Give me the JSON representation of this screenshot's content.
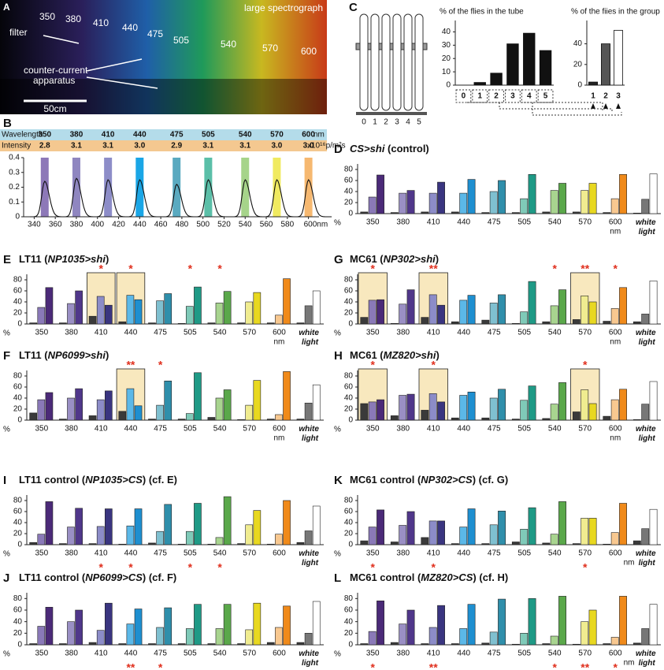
{
  "photo": {
    "label": "A",
    "title": "large spectrograph",
    "filter_label": "filter",
    "wavelengths": [
      "350",
      "380",
      "410",
      "440",
      "475",
      "505",
      "540",
      "570",
      "600"
    ],
    "apparatus_label": [
      "counter-current",
      "apparatus"
    ],
    "scale_label": "50cm"
  },
  "tubes": {
    "labels": [
      "0",
      "1",
      "2",
      "3",
      "4",
      "5"
    ]
  },
  "palette": [
    [
      "#3a3a3a",
      "#8a79b8",
      "#4b2a78"
    ],
    [
      "#3a3a3a",
      "#9a8fc4",
      "#50378a"
    ],
    [
      "#3a3a3a",
      "#8c8cc8",
      "#3a3580"
    ],
    [
      "#3a3a3a",
      "#5bb8e8",
      "#1e8fd0"
    ],
    [
      "#3a3a3a",
      "#7fc0d0",
      "#2f8fab"
    ],
    [
      "#3a3a3a",
      "#7fcab8",
      "#1f9a86"
    ],
    [
      "#3a3a3a",
      "#a8d48f",
      "#5aa84a"
    ],
    [
      "#3a3a3a",
      "#f0ec90",
      "#e8d820"
    ],
    [
      "#3a3a3a",
      "#f8c890",
      "#f08a1a"
    ],
    [
      "#3a3a3a",
      "#777777",
      "#ffffff"
    ]
  ],
  "chart_data": [
    {
      "type": "grouped_bar",
      "label": "D",
      "title": [
        {
          "text": "CS>shi",
          "italic": true
        },
        {
          "text": " (control)",
          "italic": false
        }
      ],
      "categories": [
        "350",
        "380",
        "410",
        "440",
        "475",
        "505",
        "540",
        "570",
        "600",
        "white light"
      ],
      "x_unit": "nm",
      "y_label": "%",
      "values": [
        [
          3,
          30,
          70
        ],
        [
          2,
          37,
          42
        ],
        [
          3,
          37,
          57
        ],
        [
          3,
          37,
          62
        ],
        [
          2,
          40,
          60
        ],
        [
          2,
          27,
          71
        ],
        [
          3,
          42,
          55
        ],
        [
          3,
          42,
          55
        ],
        [
          2,
          27,
          71
        ],
        [
          1,
          26,
          72
        ]
      ],
      "stars": [
        null,
        null,
        null,
        null,
        null,
        null,
        null,
        null,
        null,
        null
      ],
      "star_position": "top",
      "highlighted": [
        false,
        false,
        false,
        false,
        false,
        false,
        false,
        false,
        false,
        false
      ],
      "ylim": [
        0,
        90
      ],
      "yticks": [
        0,
        20,
        40,
        60,
        80
      ]
    },
    {
      "type": "grouped_bar",
      "label": "E",
      "title": [
        {
          "text": "LT11 (",
          "italic": false
        },
        {
          "text": "NP1035>shi",
          "italic": true
        },
        {
          "text": ")",
          "italic": false
        }
      ],
      "categories": [
        "350",
        "380",
        "410",
        "440",
        "475",
        "505",
        "540",
        "570",
        "600",
        "white light"
      ],
      "x_unit": "nm",
      "y_label": "%",
      "values": [
        [
          2,
          30,
          66
        ],
        [
          2,
          37,
          60
        ],
        [
          14,
          50,
          34
        ],
        [
          4,
          52,
          44
        ],
        [
          2,
          42,
          55
        ],
        [
          1,
          32,
          67
        ],
        [
          2,
          38,
          59
        ],
        [
          2,
          40,
          57
        ],
        [
          2,
          16,
          82
        ],
        [
          2,
          33,
          60
        ]
      ],
      "stars": [
        null,
        null,
        "*",
        "*",
        null,
        "*",
        "*",
        null,
        null,
        null
      ],
      "star_position": "top",
      "highlighted": [
        false,
        false,
        true,
        true,
        false,
        false,
        false,
        false,
        false,
        false
      ],
      "ylim": [
        0,
        90
      ],
      "yticks": [
        0,
        20,
        40,
        60,
        80
      ]
    },
    {
      "type": "grouped_bar",
      "label": "G",
      "title": [
        {
          "text": "MC61 (",
          "italic": false
        },
        {
          "text": "NP302>shi",
          "italic": true
        },
        {
          "text": ")",
          "italic": false
        }
      ],
      "categories": [
        "350",
        "380",
        "410",
        "440",
        "475",
        "505",
        "540",
        "570",
        "600",
        "white light"
      ],
      "x_unit": "nm",
      "y_label": "%",
      "values": [
        [
          12,
          43,
          44
        ],
        [
          1,
          36,
          62
        ],
        [
          12,
          53,
          34
        ],
        [
          4,
          43,
          52
        ],
        [
          7,
          38,
          53
        ],
        [
          1,
          22,
          77
        ],
        [
          4,
          33,
          62
        ],
        [
          8,
          51,
          40
        ],
        [
          5,
          28,
          66
        ],
        [
          4,
          18,
          78
        ]
      ],
      "stars": [
        "*",
        null,
        "**",
        null,
        null,
        null,
        "*",
        "**",
        "*",
        null
      ],
      "star_position": "top",
      "highlighted": [
        true,
        false,
        true,
        false,
        false,
        false,
        false,
        true,
        false,
        false
      ],
      "ylim": [
        0,
        90
      ],
      "yticks": [
        0,
        20,
        40,
        60,
        80
      ]
    },
    {
      "type": "grouped_bar",
      "label": "F",
      "title": [
        {
          "text": "LT11 (",
          "italic": false
        },
        {
          "text": "NP6099>shi",
          "italic": true
        },
        {
          "text": ")",
          "italic": false
        }
      ],
      "categories": [
        "350",
        "380",
        "410",
        "440",
        "475",
        "505",
        "540",
        "570",
        "600",
        "white light"
      ],
      "x_unit": "nm",
      "y_label": "%",
      "values": [
        [
          13,
          37,
          50
        ],
        [
          2,
          40,
          57
        ],
        [
          8,
          37,
          53
        ],
        [
          16,
          57,
          26
        ],
        [
          2,
          27,
          71
        ],
        [
          2,
          12,
          86
        ],
        [
          5,
          40,
          55
        ],
        [
          1,
          27,
          72
        ],
        [
          2,
          10,
          88
        ],
        [
          2,
          31,
          64
        ]
      ],
      "stars": [
        null,
        null,
        null,
        "**",
        "*",
        null,
        null,
        null,
        null,
        null
      ],
      "star_position": "top",
      "highlighted": [
        false,
        false,
        false,
        true,
        false,
        false,
        false,
        false,
        false,
        false
      ],
      "ylim": [
        0,
        90
      ],
      "yticks": [
        0,
        20,
        40,
        60,
        80
      ]
    },
    {
      "type": "grouped_bar",
      "label": "H",
      "title": [
        {
          "text": "MC61 (",
          "italic": false
        },
        {
          "text": "MZ820>shi",
          "italic": true
        },
        {
          "text": ")",
          "italic": false
        }
      ],
      "categories": [
        "350",
        "380",
        "410",
        "440",
        "475",
        "505",
        "540",
        "570",
        "600",
        "white light"
      ],
      "x_unit": "nm",
      "y_label": "%",
      "values": [
        [
          30,
          33,
          37
        ],
        [
          8,
          45,
          47
        ],
        [
          18,
          48,
          33
        ],
        [
          4,
          45,
          51
        ],
        [
          4,
          40,
          56
        ],
        [
          2,
          36,
          62
        ],
        [
          3,
          29,
          68
        ],
        [
          15,
          55,
          30
        ],
        [
          7,
          37,
          56
        ],
        [
          1,
          29,
          70
        ]
      ],
      "stars": [
        "*",
        null,
        "*",
        null,
        null,
        null,
        null,
        "*",
        null,
        null
      ],
      "star_position": "top",
      "highlighted": [
        true,
        false,
        true,
        false,
        false,
        false,
        false,
        true,
        false,
        false
      ],
      "ylim": [
        0,
        90
      ],
      "yticks": [
        0,
        20,
        40,
        60,
        80
      ]
    },
    {
      "type": "grouped_bar",
      "label": "I",
      "title": [
        {
          "text": "LT11 control (",
          "italic": false
        },
        {
          "text": "NP1035>CS",
          "italic": true
        },
        {
          "text": ") (cf. E)",
          "italic": false
        }
      ],
      "categories": [
        "350",
        "380",
        "410",
        "440",
        "475",
        "505",
        "540",
        "570",
        "600",
        "white light"
      ],
      "y_label": "%",
      "values": [
        [
          4,
          19,
          78
        ],
        [
          2,
          32,
          66
        ],
        [
          2,
          33,
          65
        ],
        [
          1,
          34,
          65
        ],
        [
          3,
          24,
          73
        ],
        [
          1,
          24,
          75
        ],
        [
          1,
          13,
          87
        ],
        [
          2,
          36,
          62
        ],
        [
          1,
          19,
          80
        ],
        [
          4,
          25,
          70
        ]
      ],
      "stars": [
        null,
        null,
        "*",
        "*",
        null,
        "*",
        "*",
        null,
        null,
        null
      ],
      "star_position": "bottom",
      "highlighted": [
        false,
        false,
        false,
        false,
        false,
        false,
        false,
        false,
        false,
        false
      ],
      "ylim": [
        0,
        90
      ],
      "yticks": [
        0,
        20,
        40,
        60,
        80
      ]
    },
    {
      "type": "grouped_bar",
      "label": "K",
      "title": [
        {
          "text": "MC61 control (",
          "italic": false
        },
        {
          "text": "NP302>CS",
          "italic": true
        },
        {
          "text": ") (cf. G)",
          "italic": false
        }
      ],
      "categories": [
        "350",
        "380",
        "410",
        "440",
        "475",
        "505",
        "540",
        "570",
        "600",
        "white light"
      ],
      "x_unit": "nm",
      "y_label": "%",
      "values": [
        [
          7,
          32,
          63
        ],
        [
          5,
          35,
          60
        ],
        [
          13,
          43,
          43
        ],
        [
          2,
          32,
          65
        ],
        [
          2,
          36,
          61
        ],
        [
          5,
          28,
          67
        ],
        [
          3,
          19,
          78
        ],
        [
          2,
          48,
          48
        ],
        [
          1,
          22,
          75
        ],
        [
          7,
          29,
          64
        ]
      ],
      "stars": [
        "*",
        null,
        "*",
        null,
        null,
        null,
        null,
        "*",
        null,
        null
      ],
      "star_position": "bottom",
      "highlighted": [
        false,
        false,
        false,
        false,
        false,
        false,
        false,
        false,
        false,
        false
      ],
      "ylim": [
        0,
        90
      ],
      "yticks": [
        0,
        20,
        40,
        60,
        80
      ]
    },
    {
      "type": "grouped_bar",
      "label": "J",
      "title": [
        {
          "text": "LT11 control (",
          "italic": false
        },
        {
          "text": "NP6099>CS",
          "italic": true
        },
        {
          "text": ") (cf. F)",
          "italic": false
        }
      ],
      "categories": [
        "350",
        "380",
        "410",
        "440",
        "475",
        "505",
        "540",
        "570",
        "600",
        "white light"
      ],
      "y_label": "%",
      "values": [
        [
          2,
          32,
          65
        ],
        [
          2,
          40,
          60
        ],
        [
          4,
          25,
          72
        ],
        [
          2,
          36,
          62
        ],
        [
          2,
          30,
          64
        ],
        [
          2,
          28,
          70
        ],
        [
          2,
          28,
          70
        ],
        [
          2,
          26,
          72
        ],
        [
          4,
          30,
          67
        ],
        [
          4,
          20,
          75
        ]
      ],
      "stars": [
        null,
        null,
        null,
        "**",
        "*",
        null,
        null,
        null,
        null,
        null
      ],
      "star_position": "bottom",
      "highlighted": [
        false,
        false,
        false,
        false,
        false,
        false,
        false,
        false,
        false,
        false
      ],
      "ylim": [
        0,
        90
      ],
      "yticks": [
        0,
        20,
        40,
        60,
        80
      ]
    },
    {
      "type": "grouped_bar",
      "label": "L",
      "title": [
        {
          "text": "MC61 control (",
          "italic": false
        },
        {
          "text": "MZ820>CS",
          "italic": true
        },
        {
          "text": ") (cf. H)",
          "italic": false
        }
      ],
      "categories": [
        "350",
        "380",
        "410",
        "440",
        "475",
        "505",
        "540",
        "570",
        "600",
        "white light"
      ],
      "x_unit": "nm",
      "y_label": "%",
      "values": [
        [
          2,
          23,
          76
        ],
        [
          4,
          36,
          60
        ],
        [
          2,
          30,
          68
        ],
        [
          2,
          28,
          70
        ],
        [
          3,
          22,
          79
        ],
        [
          1,
          20,
          80
        ],
        [
          2,
          15,
          84
        ],
        [
          1,
          40,
          60
        ],
        [
          2,
          13,
          84
        ],
        [
          3,
          28,
          70
        ]
      ],
      "stars": [
        "*",
        null,
        "**",
        null,
        null,
        null,
        "*",
        "**",
        "*",
        null
      ],
      "star_position": "bottom",
      "highlighted": [
        false,
        false,
        false,
        false,
        false,
        false,
        false,
        false,
        false,
        false
      ],
      "ylim": [
        0,
        90
      ],
      "yticks": [
        0,
        20,
        40,
        60,
        80
      ]
    },
    {
      "type": "bar",
      "label": "C",
      "title": "% of the flies in the tube",
      "categories": [
        "0",
        "1",
        "2",
        "3",
        "4",
        "5"
      ],
      "values": [
        0,
        2,
        9,
        31,
        39,
        26
      ],
      "colors": [
        "#111",
        "#111",
        "#111",
        "#111",
        "#111",
        "#111"
      ],
      "ylim": [
        0,
        45
      ],
      "yticks": [
        0,
        10,
        20,
        30,
        40
      ]
    },
    {
      "type": "bar",
      "title": "% of the fiies in the group",
      "categories": [
        "1",
        "2",
        "3"
      ],
      "values": [
        3,
        40,
        53
      ],
      "colors": [
        "#222",
        "#555",
        "#ffffff"
      ],
      "ylim": [
        0,
        58
      ],
      "yticks": [
        0,
        20,
        40
      ]
    },
    {
      "type": "line",
      "label": "B",
      "row_labels": [
        "Wavelength",
        "Intensity"
      ],
      "wavelengths": [
        350,
        380,
        410,
        440,
        475,
        505,
        540,
        570,
        600
      ],
      "wavelength_unit": "nm",
      "intensities": [
        2.8,
        3.1,
        3.1,
        3.0,
        2.9,
        3.1,
        3.1,
        3.0,
        3.0
      ],
      "intensity_labels": [
        "2.8",
        "3.1",
        "3.1",
        "3.0",
        "2.9",
        "3.1",
        "3.1",
        "3.0",
        "3.0"
      ],
      "intensity_unit": "x10¹⁶p/m²s",
      "band_colors": [
        "#8d78b8",
        "#8f86c0",
        "#8d8dc8",
        "#1aa6e6",
        "#5aaac0",
        "#5bbfa8",
        "#a6d48a",
        "#f0ea60",
        "#f6b870"
      ],
      "peak_heights": [
        0.24,
        0.26,
        0.25,
        0.25,
        0.22,
        0.25,
        0.25,
        0.25,
        0.25
      ],
      "xlim": [
        330,
        610
      ],
      "xticks": [
        340,
        360,
        380,
        400,
        420,
        440,
        460,
        480,
        500,
        520,
        540,
        560,
        580,
        {
          "value": 600,
          "label": "600nm"
        }
      ],
      "ylim": [
        0,
        0.4
      ],
      "yticks": [
        0,
        0.1,
        0.2,
        0.3,
        0.4
      ]
    }
  ]
}
